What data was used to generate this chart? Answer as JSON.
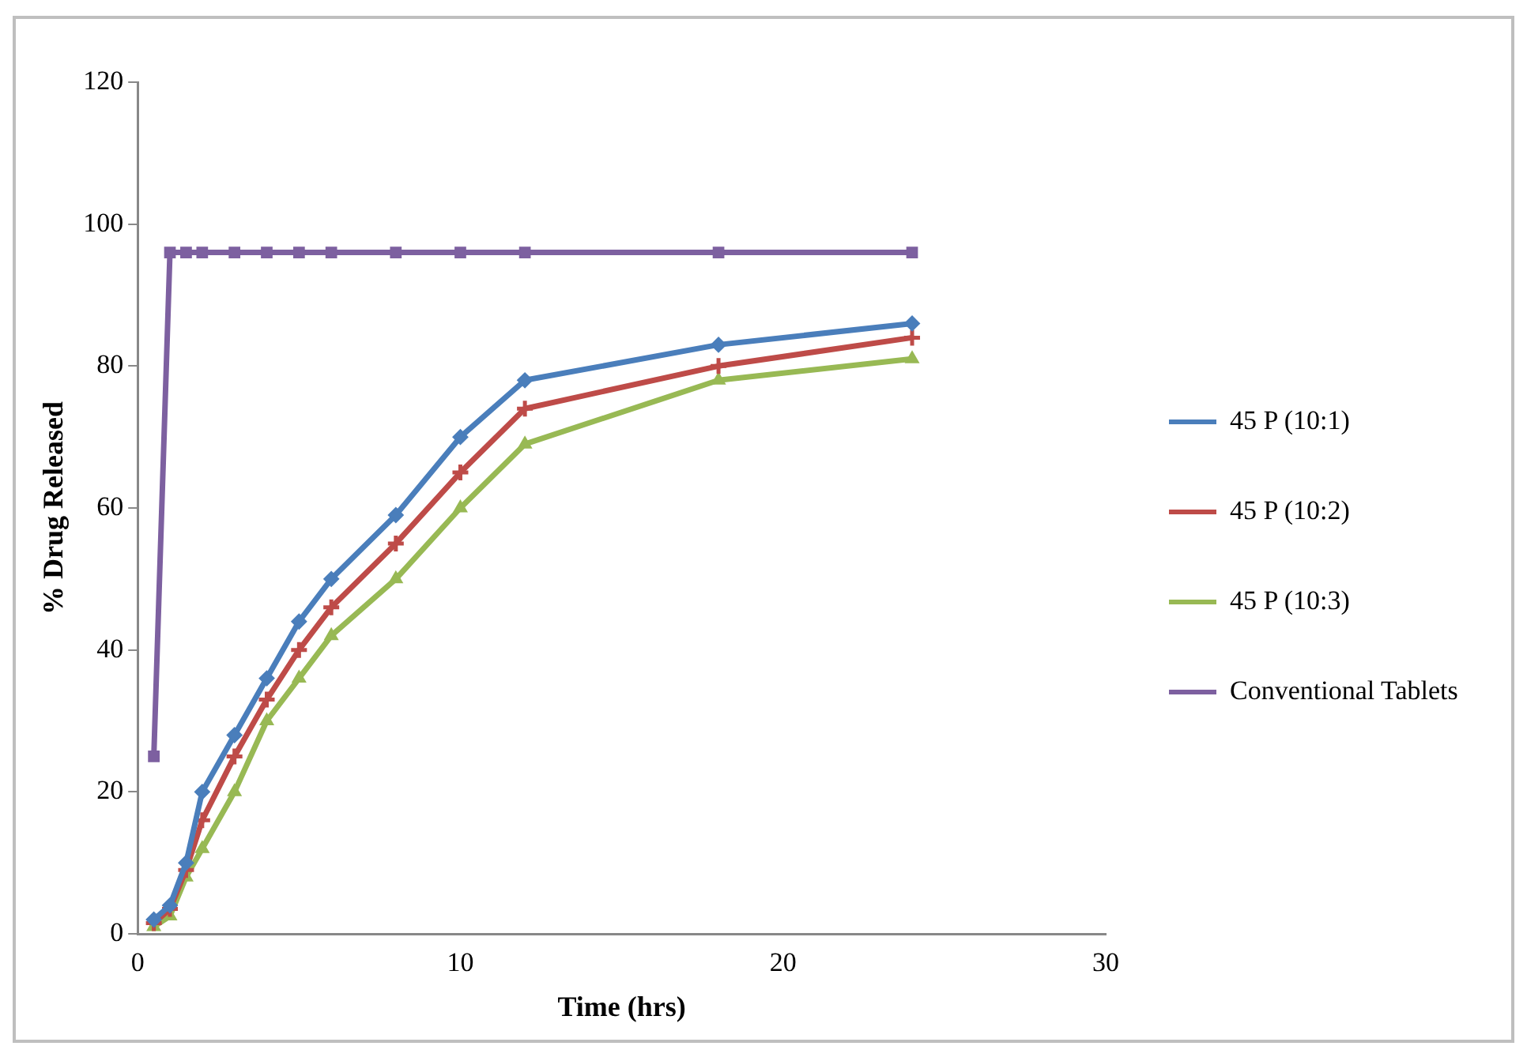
{
  "chart_data": {
    "type": "line",
    "xlabel": "Time (hrs)",
    "ylabel": "% Drug Released",
    "xlim": [
      0,
      30
    ],
    "xticks": [
      0,
      10,
      20,
      30
    ],
    "ylim": [
      0,
      120
    ],
    "yticks": [
      0,
      20,
      40,
      60,
      80,
      100,
      120
    ],
    "grid": false,
    "legend": "right",
    "x": [
      0.5,
      1,
      1.5,
      2,
      3,
      4,
      5,
      6,
      8,
      10,
      12,
      18,
      24
    ],
    "series": [
      {
        "name": "45 P (10:1)",
        "color": "#4a7ebb",
        "marker": "diamond",
        "values": [
          2,
          4,
          10,
          20,
          28,
          36,
          44,
          50,
          59,
          70,
          78,
          83,
          86
        ]
      },
      {
        "name": "45 P (10:2)",
        "color": "#be4b48",
        "marker": "cross",
        "values": [
          1.5,
          3.5,
          9,
          16,
          25,
          33,
          40,
          46,
          55,
          65,
          74,
          80,
          84
        ]
      },
      {
        "name": "45 P (10:3)",
        "color": "#98b954",
        "marker": "triangle",
        "values": [
          1,
          2.5,
          8,
          12,
          20,
          30,
          36,
          42,
          50,
          60,
          69,
          78,
          81
        ]
      },
      {
        "name": "Conventional Tablets",
        "color": "#7d60a0",
        "marker": "square",
        "values": [
          25,
          96,
          96,
          96,
          96,
          96,
          96,
          96,
          96,
          96,
          96,
          96,
          96
        ]
      }
    ]
  }
}
